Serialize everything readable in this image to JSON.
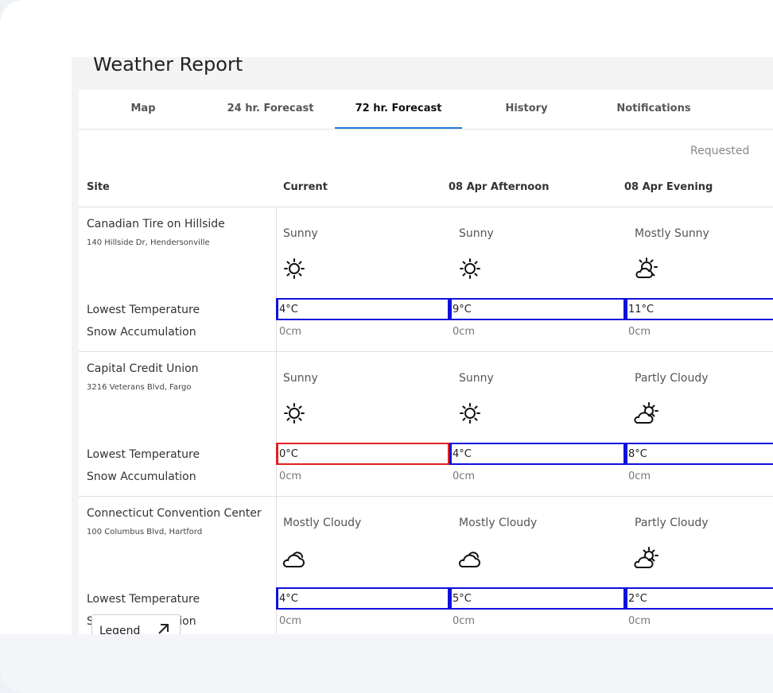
{
  "header": {
    "title": "Weather Report"
  },
  "tabs": [
    "Map",
    "24 hr. Forecast",
    "72 hr. Forecast",
    "History",
    "Notifications"
  ],
  "table": {
    "note": "Requested",
    "columns": [
      "Site",
      "Current",
      "08 Apr Afternoon",
      "08 Apr Evening"
    ],
    "rows": [
      {
        "site": "Canadian Tire on Hillside",
        "address": "140 Hillside Dr, Hendersonville",
        "conditions": [
          "Sunny",
          "Sunny",
          "Mostly Sunny"
        ],
        "metrics": [
          {
            "label": "Lowest Temperature",
            "values": [
              "4°C",
              "9°C",
              "11°C"
            ]
          },
          {
            "label": "Snow Accumulation",
            "values": [
              "0cm",
              "0cm",
              "0cm"
            ]
          }
        ]
      },
      {
        "site": "Capital Credit Union",
        "address": "3216 Veterans Blvd, Fargo",
        "conditions": [
          "Sunny",
          "Sunny",
          "Partly Cloudy"
        ],
        "metrics": [
          {
            "label": "Lowest Temperature",
            "values": [
              "0°C",
              "4°C",
              "8°C"
            ]
          },
          {
            "label": "Snow Accumulation",
            "values": [
              "0cm",
              "0cm",
              "0cm"
            ]
          }
        ]
      },
      {
        "site": "Connecticut Convention Center",
        "address": "100 Columbus Blvd, Hartford",
        "conditions": [
          "Mostly Cloudy",
          "Mostly Cloudy",
          "Partly Cloudy"
        ],
        "metrics": [
          {
            "label": "Lowest Temperature",
            "values": [
              "4°C",
              "5°C",
              "2°C"
            ]
          },
          {
            "label": "Snow Accumulation",
            "values": [
              "0cm",
              "0cm",
              "0cm"
            ]
          }
        ]
      }
    ]
  },
  "legend": {
    "label": "Legend"
  }
}
